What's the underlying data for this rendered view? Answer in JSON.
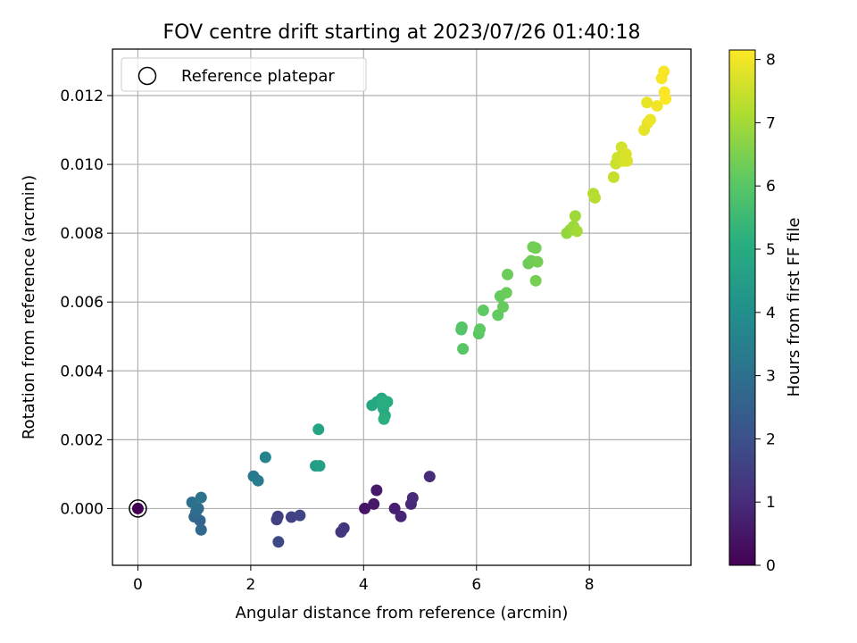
{
  "chart_data": {
    "type": "scatter",
    "title": "FOV centre drift starting at 2023/07/26 01:40:18",
    "xlabel": "Angular distance from reference (arcmin)",
    "ylabel": "Rotation from reference (arcmin)",
    "xlim": [
      -0.45,
      9.8
    ],
    "ylim": [
      -0.00165,
      0.01335
    ],
    "xticks": [
      "0",
      "2",
      "4",
      "6",
      "8"
    ],
    "xtick_values": [
      0,
      2,
      4,
      6,
      8
    ],
    "yticks": [
      "0.000",
      "0.002",
      "0.004",
      "0.006",
      "0.008",
      "0.010",
      "0.012"
    ],
    "ytick_values": [
      0.0,
      0.002,
      0.004,
      0.006,
      0.008,
      0.01,
      0.012
    ],
    "grid": true,
    "legend": {
      "position": "top-left",
      "entries": [
        "Reference platepar"
      ]
    },
    "reference_point": {
      "x": 0.0,
      "y": 0.0
    },
    "colormap": "viridis",
    "colorbar": {
      "label": "Hours from first FF file",
      "range": [
        0,
        8.15
      ],
      "ticks": [
        "0",
        "1",
        "2",
        "3",
        "4",
        "5",
        "6",
        "7",
        "8"
      ],
      "tick_values": [
        0,
        1,
        2,
        3,
        4,
        5,
        6,
        7,
        8
      ]
    },
    "series": [
      {
        "x": [
          0.0,
          4.02,
          4.18,
          4.23,
          4.55,
          4.66,
          4.84,
          4.87,
          5.17,
          3.6,
          3.65,
          2.48,
          2.46,
          2.72,
          2.87,
          2.49,
          1.1,
          1.0,
          1.12,
          1.03,
          1.07,
          0.96,
          1.12,
          2.05,
          2.13,
          2.26,
          3.15,
          3.22,
          3.2,
          4.15,
          4.24,
          4.32,
          4.38,
          4.35,
          4.42,
          4.33,
          4.36,
          5.73,
          5.74,
          5.76,
          6.04,
          6.06,
          6.12,
          6.38,
          6.42,
          6.47,
          6.53,
          6.55,
          6.92,
          6.97,
          7.0,
          7.05,
          7.08,
          7.05,
          7.6,
          7.66,
          7.72,
          7.75,
          7.78,
          8.07,
          8.1,
          8.43,
          8.47,
          8.5,
          8.57,
          8.6,
          8.65,
          8.67,
          8.97,
          9.03,
          9.08,
          9.2,
          9.28,
          9.32,
          9.33,
          9.35,
          9.02
        ],
        "y": [
          0.0,
          0.0,
          0.00013,
          0.00053,
          0.0,
          -0.00023,
          0.00013,
          0.00031,
          0.00093,
          -0.00068,
          -0.00057,
          -0.00023,
          -0.00032,
          -0.00025,
          -0.0002,
          -0.00097,
          -0.00035,
          -0.00024,
          -0.00062,
          -0.0001,
          0.0,
          0.00018,
          0.00032,
          0.00094,
          0.00081,
          0.00149,
          0.00124,
          0.00124,
          0.0023,
          0.003,
          0.0031,
          0.0032,
          0.0027,
          0.0029,
          0.0031,
          0.0031,
          0.0026,
          0.0052,
          0.00527,
          0.00464,
          0.00508,
          0.00521,
          0.00576,
          0.00562,
          0.00617,
          0.00586,
          0.00627,
          0.0068,
          0.00712,
          0.0072,
          0.0076,
          0.00757,
          0.00717,
          0.00662,
          0.008,
          0.0081,
          0.0082,
          0.0085,
          0.00806,
          0.00915,
          0.00903,
          0.00963,
          0.01002,
          0.0102,
          0.0105,
          0.0101,
          0.0103,
          0.0101,
          0.011,
          0.0112,
          0.0113,
          0.0117,
          0.0125,
          0.0127,
          0.0121,
          0.0119,
          0.0118
        ],
        "c": [
          0.0,
          0.45,
          0.55,
          0.6,
          0.7,
          0.8,
          0.9,
          0.95,
          1.0,
          1.2,
          1.25,
          1.5,
          1.55,
          1.6,
          1.65,
          1.75,
          2.6,
          2.7,
          2.75,
          2.8,
          2.9,
          3.0,
          3.1,
          3.3,
          3.4,
          3.6,
          4.5,
          4.6,
          4.7,
          4.8,
          4.85,
          4.9,
          4.95,
          5.0,
          5.05,
          5.1,
          5.15,
          5.9,
          5.95,
          6.0,
          6.05,
          6.1,
          6.12,
          6.15,
          6.2,
          6.22,
          6.25,
          6.28,
          6.3,
          6.33,
          6.35,
          6.38,
          6.4,
          6.42,
          6.8,
          6.85,
          6.9,
          6.95,
          7.0,
          7.2,
          7.25,
          7.45,
          7.5,
          7.55,
          7.6,
          7.65,
          7.7,
          7.72,
          7.85,
          7.9,
          7.95,
          8.0,
          8.05,
          8.08,
          8.1,
          8.12,
          7.88
        ]
      }
    ]
  }
}
